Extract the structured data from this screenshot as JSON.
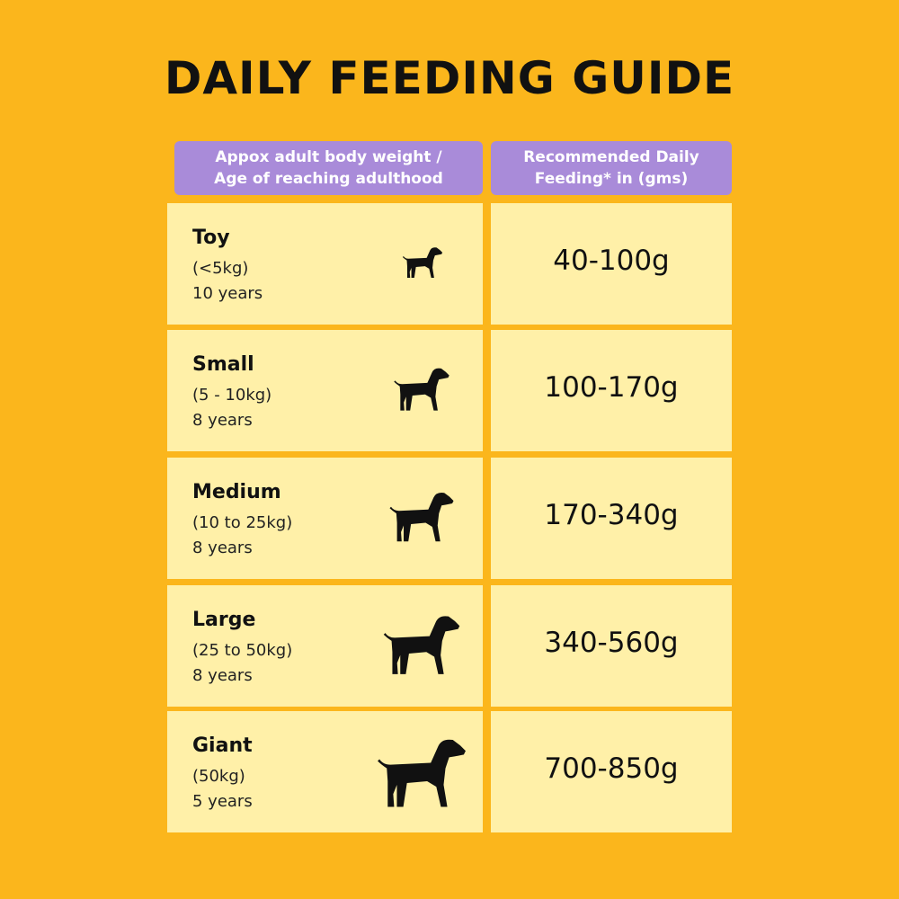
{
  "title": "DAILY FEEDING GUIDE",
  "table": {
    "headers": [
      [
        "Appox adult body weight /",
        "Age of reaching adulthood"
      ],
      [
        "Recommended Daily",
        "Feeding* in (gms)"
      ]
    ],
    "rows": [
      {
        "size": "Toy",
        "weight": "(<5kg)",
        "age": "10 years",
        "feeding": "40-100g"
      },
      {
        "size": "Small",
        "weight": "(5 - 10kg)",
        "age": "8 years",
        "feeding": "100-170g"
      },
      {
        "size": "Medium",
        "weight": "(10 to 25kg)",
        "age": "8 years",
        "feeding": "170-340g"
      },
      {
        "size": "Large",
        "weight": "(25 to 50kg)",
        "age": "8 years",
        "feeding": "340-560g"
      },
      {
        "size": "Giant",
        "weight": "(50kg)",
        "age": "5 years",
        "feeding": "700-850g"
      }
    ]
  }
}
